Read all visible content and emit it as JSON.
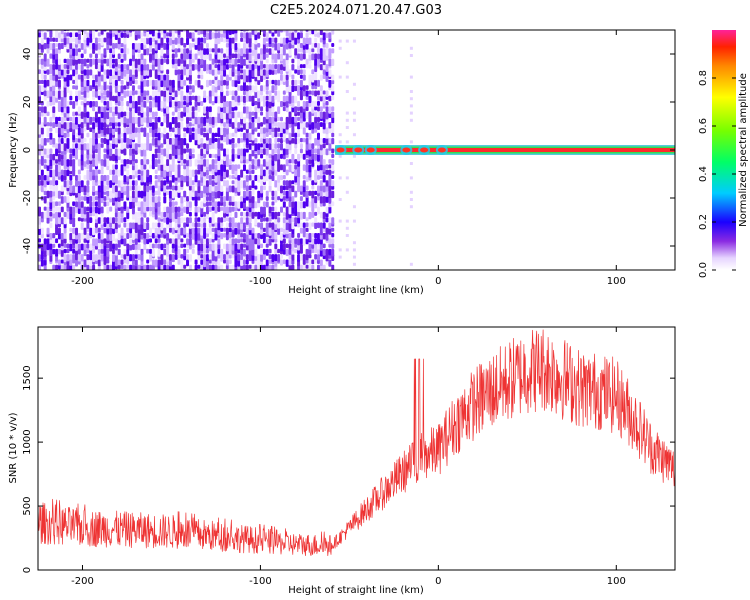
{
  "title": "C2E5.2024.071.20.47.G03",
  "chart_data": [
    {
      "type": "heatmap",
      "xlabel": "Height of straight line (km)",
      "ylabel": "Frequency (Hz)",
      "xlim": [
        -225,
        133
      ],
      "ylim": [
        -50,
        50
      ],
      "x_ticks": [
        -200,
        -100,
        0,
        100
      ],
      "y_ticks": [
        -40,
        -20,
        0,
        20,
        40
      ],
      "colorbar": {
        "label": "Normalized spectral amplitude",
        "range": [
          0,
          1
        ],
        "ticks": [
          0.0,
          0.2,
          0.4,
          0.6,
          0.8
        ],
        "tick_labels": [
          "0.0",
          "0.2",
          "0.4",
          "0.6",
          "0.8"
        ]
      },
      "features": {
        "noise_region_x": [
          -225,
          -60
        ],
        "carrier_line_freq_hz": 0,
        "carrier_line_x": [
          -58,
          133
        ],
        "carrier_peak_amplitude": 0.95
      }
    },
    {
      "type": "line",
      "xlabel": "Height of straight line (km)",
      "ylabel": "SNR (10 * v/v)",
      "xlim": [
        -225,
        133
      ],
      "ylim": [
        0,
        1900
      ],
      "x_ticks": [
        -200,
        -100,
        0,
        100
      ],
      "y_ticks": [
        0,
        500,
        1000,
        1500
      ],
      "series": [
        {
          "color": "#ee3333",
          "envelope": {
            "x": [
              -225,
              -200,
              -150,
              -100,
              -80,
              -60,
              -50,
              -40,
              -30,
              -20,
              -10,
              0,
              10,
              20,
              30,
              40,
              50,
              60,
              70,
              80,
              90,
              100,
              110,
              120,
              133
            ],
            "y": [
              370,
              330,
              300,
              230,
              200,
              190,
              330,
              480,
              620,
              760,
              880,
              940,
              1150,
              1300,
              1400,
              1480,
              1560,
              1580,
              1500,
              1420,
              1400,
              1360,
              1180,
              950,
              780
            ]
          }
        }
      ]
    }
  ]
}
